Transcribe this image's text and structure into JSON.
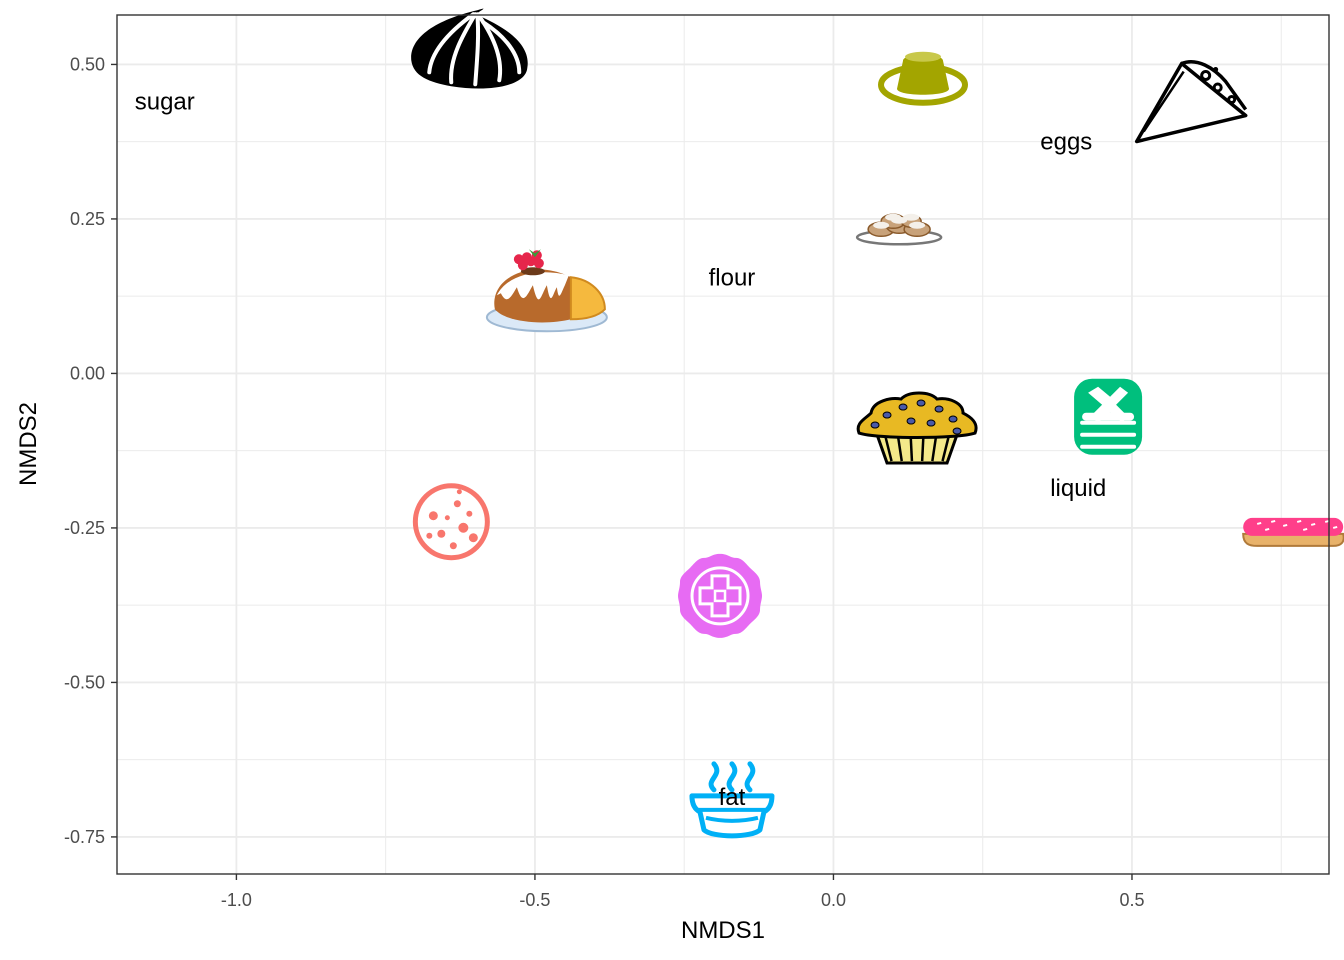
{
  "chart_data": {
    "type": "scatter",
    "title": "",
    "xlabel": "NMDS1",
    "ylabel": "NMDS2",
    "xlim": [
      -1.2,
      0.83
    ],
    "ylim": [
      -0.81,
      0.58
    ],
    "x_ticks": [
      -1.0,
      -0.5,
      0.0,
      0.5
    ],
    "x_tick_labels": [
      "-1.0",
      "-0.5",
      "0.0",
      "0.5"
    ],
    "y_ticks": [
      -0.75,
      -0.5,
      -0.25,
      0.0,
      0.25,
      0.5
    ],
    "y_tick_labels": [
      "-0.75",
      "-0.50",
      "-0.25",
      "0.00",
      "0.25",
      "0.50"
    ],
    "grid": true,
    "legend": "none",
    "points": [
      {
        "icon": "meringue-icon",
        "x": -0.61,
        "y": 0.51,
        "color": "#000000"
      },
      {
        "icon": "flan-icon",
        "x": 0.15,
        "y": 0.48,
        "color": "#a3a500"
      },
      {
        "icon": "crepe-icon",
        "x": 0.6,
        "y": 0.44,
        "color": "#000000"
      },
      {
        "icon": "beignets-icon",
        "x": 0.11,
        "y": 0.23,
        "color": "#c8a27a"
      },
      {
        "icon": "bundt-cake-icon",
        "x": -0.48,
        "y": 0.12,
        "color": "#b86a2c"
      },
      {
        "icon": "muffin-icon",
        "x": 0.14,
        "y": -0.09,
        "color": "#e8b923"
      },
      {
        "icon": "pancakes-icon",
        "x": 0.46,
        "y": -0.07,
        "color": "#00bf7d"
      },
      {
        "icon": "eclair-icon",
        "x": 0.77,
        "y": -0.25,
        "color": "#ff3f8a"
      },
      {
        "icon": "cookie-icon",
        "x": -0.64,
        "y": -0.24,
        "color": "#f8766d"
      },
      {
        "icon": "mooncake-icon",
        "x": -0.19,
        "y": -0.36,
        "color": "#e76bf3"
      },
      {
        "icon": "pie-icon",
        "x": -0.17,
        "y": -0.69,
        "color": "#00b0f6"
      }
    ],
    "variables": [
      {
        "label": "sugar",
        "x": -1.12,
        "y": 0.44
      },
      {
        "label": "eggs",
        "x": 0.39,
        "y": 0.375
      },
      {
        "label": "flour",
        "x": -0.17,
        "y": 0.155
      },
      {
        "label": "liquid",
        "x": 0.41,
        "y": -0.185
      },
      {
        "label": "fat",
        "x": -0.17,
        "y": -0.685
      }
    ]
  }
}
